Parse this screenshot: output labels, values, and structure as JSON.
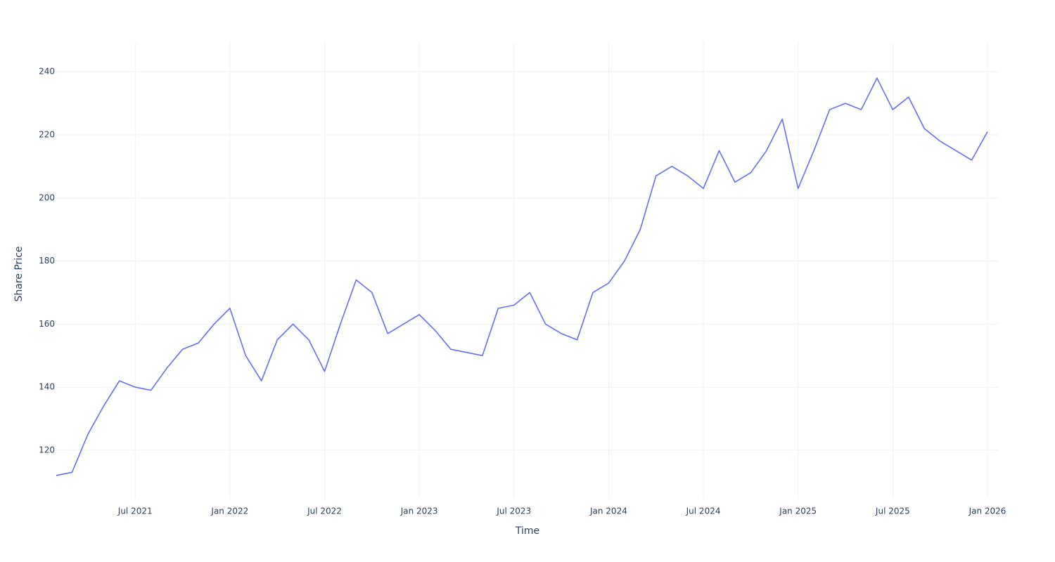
{
  "chart_data": {
    "type": "line",
    "x_label": "Time",
    "y_label": "Share Price",
    "x": [
      "2021-02",
      "2021-03",
      "2021-04",
      "2021-05",
      "2021-06",
      "2021-07",
      "2021-08",
      "2021-09",
      "2021-10",
      "2021-11",
      "2021-12",
      "2022-01",
      "2022-02",
      "2022-03",
      "2022-04",
      "2022-05",
      "2022-06",
      "2022-07",
      "2022-08",
      "2022-09",
      "2022-10",
      "2022-11",
      "2022-12",
      "2023-01",
      "2023-02",
      "2023-03",
      "2023-04",
      "2023-05",
      "2023-06",
      "2023-07",
      "2023-08",
      "2023-09",
      "2023-10",
      "2023-11",
      "2023-12",
      "2024-01",
      "2024-02",
      "2024-03",
      "2024-04",
      "2024-05",
      "2024-06",
      "2024-07",
      "2024-08",
      "2024-09",
      "2024-10",
      "2024-11",
      "2024-12",
      "2025-01",
      "2025-02",
      "2025-03",
      "2025-04",
      "2025-05",
      "2025-06",
      "2025-07",
      "2025-08",
      "2025-09",
      "2025-10",
      "2025-11",
      "2025-12",
      "2026-01"
    ],
    "series": [
      {
        "name": "Share Price",
        "color": "#636efa",
        "values": [
          112,
          113,
          125,
          134,
          142,
          140,
          139,
          146,
          152,
          154,
          160,
          165,
          150,
          142,
          155,
          160,
          155,
          145,
          160,
          174,
          170,
          157,
          160,
          163,
          158,
          152,
          151,
          150,
          165,
          166,
          170,
          160,
          157,
          155,
          170,
          173,
          180,
          190,
          207,
          210,
          207,
          203,
          215,
          205,
          208,
          215,
          225,
          203,
          215,
          228,
          230,
          228,
          238,
          228,
          232,
          222,
          218,
          215,
          212,
          221
        ]
      }
    ],
    "xlim": [
      "2021-02",
      "2026-01"
    ],
    "xticks": [
      {
        "value": "2021-07",
        "label": "Jul 2021"
      },
      {
        "value": "2022-01",
        "label": "Jan 2022"
      },
      {
        "value": "2022-07",
        "label": "Jul 2022"
      },
      {
        "value": "2023-01",
        "label": "Jan 2023"
      },
      {
        "value": "2023-07",
        "label": "Jul 2023"
      },
      {
        "value": "2024-01",
        "label": "Jan 2024"
      },
      {
        "value": "2024-07",
        "label": "Jul 2024"
      },
      {
        "value": "2025-01",
        "label": "Jan 2025"
      },
      {
        "value": "2025-07",
        "label": "Jul 2025"
      },
      {
        "value": "2026-01",
        "label": "Jan 2026"
      }
    ],
    "ylim": [
      104.6,
      249.4
    ],
    "yticks": [
      120,
      140,
      160,
      180,
      200,
      220,
      240
    ],
    "grid": true
  }
}
